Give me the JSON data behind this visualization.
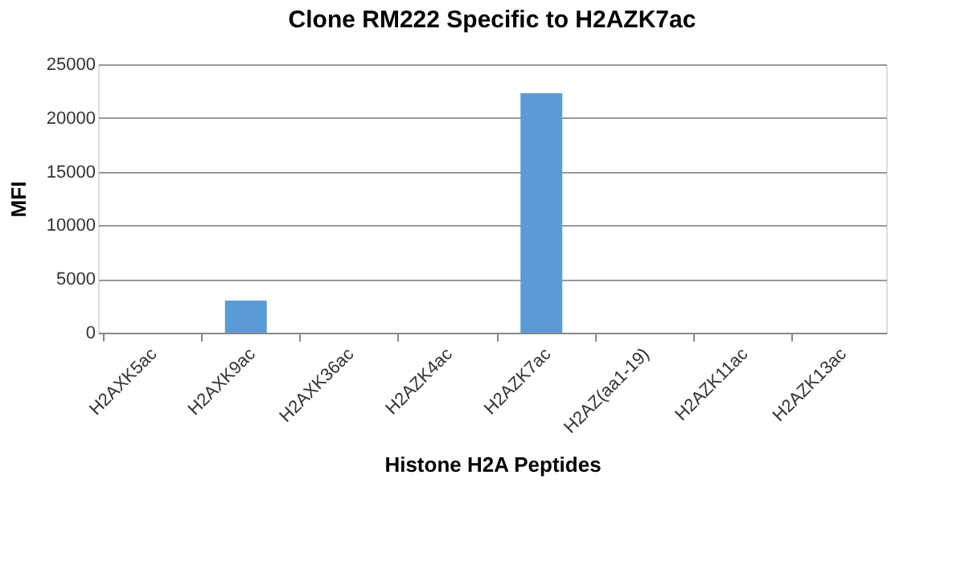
{
  "chart_data": {
    "type": "bar",
    "title": "Clone RM222 Specific to H2AZK7ac",
    "xlabel": "Histone H2A Peptides",
    "ylabel": "MFI",
    "categories": [
      "H2AXK5ac",
      "H2AXK9ac",
      "H2AXK36ac",
      "H2AZK4ac",
      "H2AZK7ac",
      "H2AZ(aa1-19)",
      "H2AZK11ac",
      "H2AZK13ac"
    ],
    "values": [
      0,
      3000,
      0,
      0,
      22300,
      0,
      0,
      0
    ],
    "color": "#5b9bd5",
    "ylim": [
      0,
      25000
    ],
    "yticks": [
      0,
      5000,
      10000,
      15000,
      20000,
      25000
    ],
    "grid": "y"
  }
}
